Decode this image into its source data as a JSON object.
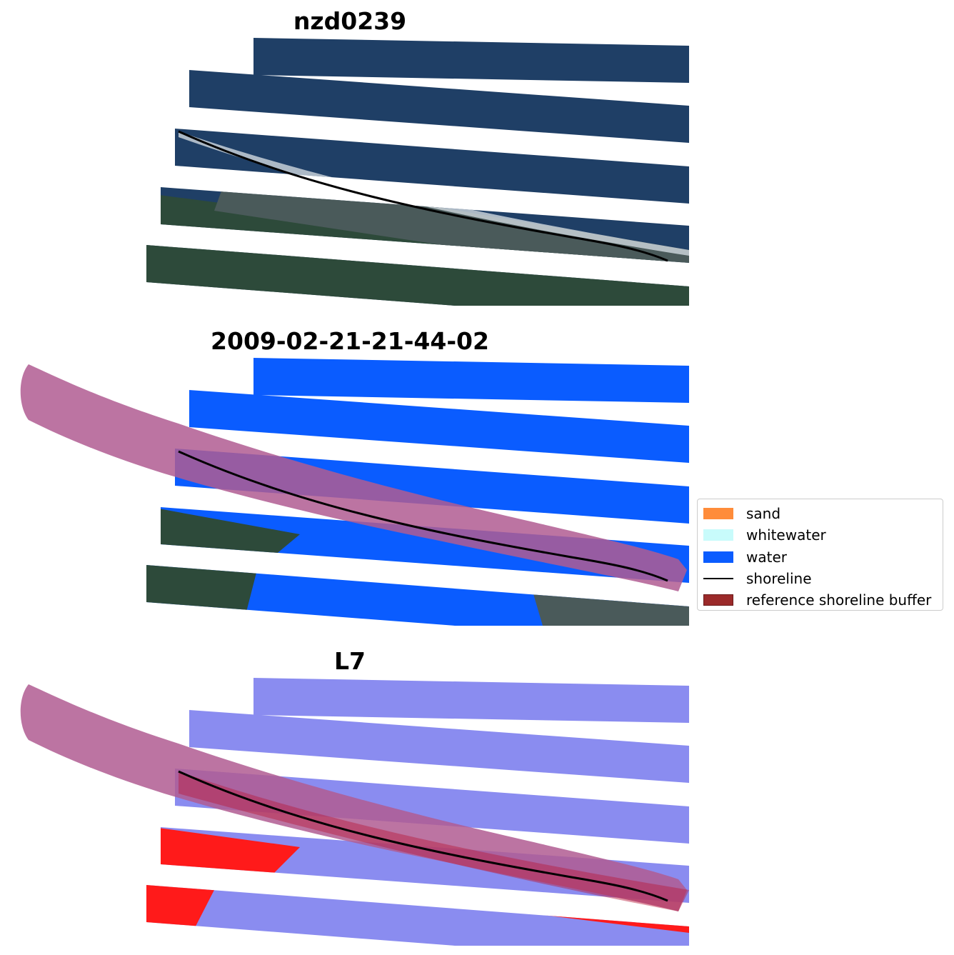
{
  "panels": [
    {
      "title": "nzd0239",
      "view": "true-color"
    },
    {
      "title": "2009-02-21-21-44-02",
      "view": "classification"
    },
    {
      "title": "L7",
      "view": "index"
    }
  ],
  "legend": {
    "items": [
      {
        "label": "sand",
        "color": "#ff8c3a",
        "kind": "patch"
      },
      {
        "label": "whitewater",
        "color": "#c8fbfb",
        "kind": "patch"
      },
      {
        "label": "water",
        "color": "#0a5cff",
        "kind": "patch"
      },
      {
        "label": "shoreline",
        "color": "#000000",
        "kind": "line"
      },
      {
        "label": "reference shoreline buffer",
        "color": "#9b2a2a",
        "kind": "patch"
      }
    ]
  },
  "colors": {
    "ocean": "#1f3f66",
    "ocean_light": "#2c5a7a",
    "land": "#4a5a5a",
    "vegetation": "#2d4a3a",
    "water_class": "#0a5cff",
    "buffer_overlay": "#b05c92",
    "index_water": "#8a8cf0",
    "index_land": "#ff1a1a",
    "shoreline": "#000000"
  }
}
